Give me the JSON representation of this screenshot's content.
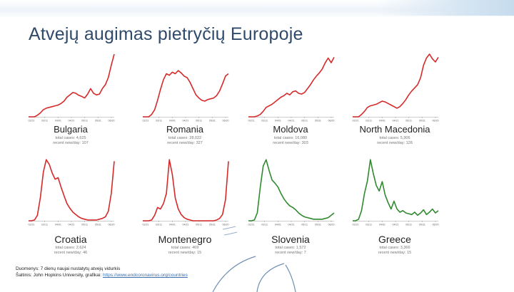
{
  "title": "Atvejų augimas pietryčių Europoje",
  "footer": {
    "line1": "Duomenys: 7 dienų naujai nustatytų atvejų vidurkis",
    "line2_prefix": "Šaltinis: John Hopkins University, grafikai:",
    "line2_link": "https://www.endcoronavirus.org/countries"
  },
  "colors": {
    "red": "#d42a2a",
    "green": "#2f8a2f",
    "title": "#2f4a6a"
  },
  "chart_data": [
    {
      "type": "line",
      "title": "Bulgaria",
      "color": "red",
      "total_cases": "4,625",
      "recent_new_per_day": "107",
      "x_ticks": [
        "02/21",
        "03/11",
        "04/01",
        "04/21",
        "05/11",
        "05/31",
        "06/20"
      ],
      "values": [
        0,
        0,
        0,
        4,
        10,
        18,
        22,
        24,
        26,
        28,
        30,
        34,
        40,
        50,
        56,
        62,
        60,
        55,
        52,
        48,
        58,
        72,
        60,
        56,
        58,
        72,
        82,
        100,
        132,
        160
      ]
    },
    {
      "type": "line",
      "title": "Romania",
      "color": "red",
      "total_cases": "28,022",
      "recent_new_per_day": "327",
      "x_ticks": [
        "02/21",
        "03/11",
        "04/01",
        "04/21",
        "05/11",
        "05/31",
        "06/20"
      ],
      "values": [
        0,
        0,
        0,
        6,
        18,
        42,
        70,
        95,
        110,
        106,
        114,
        110,
        118,
        112,
        104,
        100,
        88,
        72,
        56,
        48,
        42,
        40,
        44,
        46,
        48,
        54,
        66,
        84,
        104,
        110
      ]
    },
    {
      "type": "line",
      "title": "Moldova",
      "color": "red",
      "total_cases": "16,080",
      "recent_new_per_day": "303",
      "x_ticks": [
        "02/21",
        "03/11",
        "04/01",
        "04/21",
        "05/11",
        "05/31",
        "06/20"
      ],
      "values": [
        0,
        0,
        0,
        2,
        6,
        14,
        24,
        28,
        32,
        38,
        44,
        50,
        54,
        60,
        56,
        64,
        66,
        60,
        58,
        62,
        72,
        82,
        94,
        104,
        112,
        122,
        138,
        150,
        138,
        152
      ]
    },
    {
      "type": "line",
      "title": "North Macedonia",
      "color": "red",
      "total_cases": "5,906",
      "recent_new_per_day": "128",
      "x_ticks": [
        "02/21",
        "03/11",
        "04/01",
        "04/21",
        "05/11",
        "05/31",
        "06/20"
      ],
      "values": [
        0,
        0,
        0,
        6,
        14,
        24,
        28,
        30,
        32,
        36,
        40,
        38,
        34,
        30,
        26,
        22,
        26,
        34,
        44,
        56,
        66,
        74,
        82,
        100,
        132,
        150,
        160,
        148,
        140,
        152
      ]
    },
    {
      "type": "line",
      "title": "Croatia",
      "color": "red",
      "total_cases": "2,624",
      "recent_new_per_day": "46",
      "x_ticks": [
        "02/21",
        "03/11",
        "04/01",
        "04/21",
        "05/11",
        "05/31",
        "06/20"
      ],
      "values": [
        0,
        0,
        2,
        14,
        60,
        124,
        156,
        144,
        122,
        106,
        110,
        86,
        64,
        44,
        32,
        22,
        16,
        10,
        6,
        4,
        2,
        2,
        2,
        2,
        4,
        6,
        10,
        24,
        70,
        152
      ]
    },
    {
      "type": "line",
      "title": "Montenegro",
      "color": "red",
      "total_cases": "469",
      "recent_new_per_day": "15",
      "x_ticks": [
        "02/21",
        "03/11",
        "04/01",
        "04/21",
        "05/11",
        "05/31",
        "06/20"
      ],
      "values": [
        0,
        0,
        0,
        2,
        14,
        34,
        30,
        44,
        70,
        156,
        118,
        58,
        30,
        16,
        8,
        4,
        2,
        0,
        0,
        0,
        0,
        0,
        0,
        0,
        0,
        2,
        6,
        16,
        54,
        152
      ]
    },
    {
      "type": "line",
      "title": "Slovenia",
      "color": "green",
      "total_cases": "1,572",
      "recent_new_per_day": "7",
      "x_ticks": [
        "02/21",
        "03/11",
        "04/01",
        "04/21",
        "05/11",
        "05/31",
        "06/20"
      ],
      "values": [
        0,
        0,
        2,
        20,
        86,
        140,
        156,
        128,
        104,
        96,
        86,
        70,
        56,
        46,
        38,
        34,
        28,
        20,
        14,
        10,
        8,
        6,
        4,
        4,
        4,
        4,
        6,
        8,
        14,
        20
      ]
    },
    {
      "type": "line",
      "title": "Greece",
      "color": "green",
      "total_cases": "3,366",
      "recent_new_per_day": "15",
      "x_ticks": [
        "02/21",
        "03/11",
        "04/01",
        "04/21",
        "05/11",
        "05/31",
        "06/20"
      ],
      "values": [
        0,
        0,
        4,
        26,
        70,
        102,
        156,
        120,
        90,
        76,
        100,
        66,
        46,
        30,
        50,
        30,
        22,
        26,
        20,
        18,
        16,
        22,
        14,
        20,
        28,
        16,
        22,
        30,
        20,
        26
      ]
    }
  ]
}
